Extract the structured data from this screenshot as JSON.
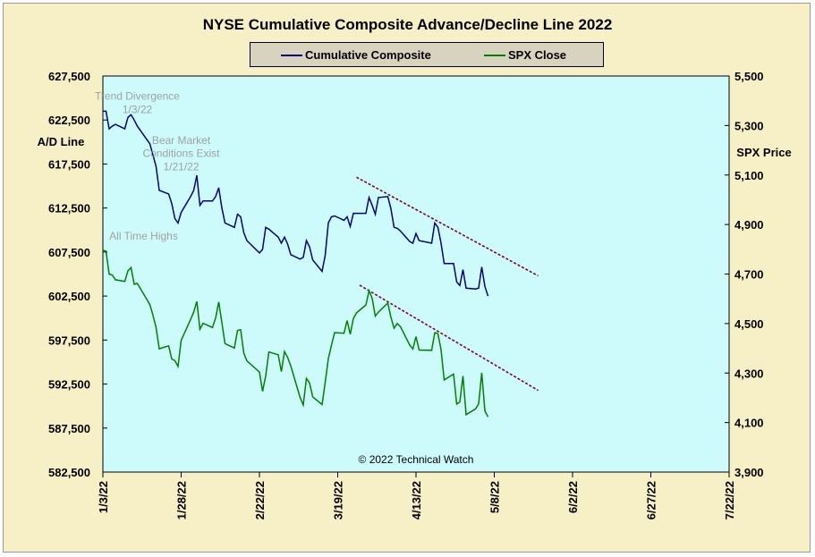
{
  "chart_data": {
    "type": "line",
    "title": "NYSE Cumulative Composite Advance/Decline Line 2022",
    "ylabel_left": "A/D Line",
    "ylabel_right": "SPX Price",
    "y_left_range": [
      582500,
      627500
    ],
    "y_right_range": [
      3900,
      5500
    ],
    "y_left_ticks": [
      "627,500",
      "622,500",
      "617,500",
      "612,500",
      "607,500",
      "602,500",
      "597,500",
      "592,500",
      "587,500",
      "582,500"
    ],
    "y_right_ticks": [
      "5,500",
      "5,300",
      "5,100",
      "4,900",
      "4,700",
      "4,500",
      "4,300",
      "4,100",
      "3,900"
    ],
    "x_range": [
      "2022-01-03",
      "2022-07-22"
    ],
    "x_ticks": [
      "1/3/22",
      "1/28/22",
      "2/22/22",
      "3/19/22",
      "4/13/22",
      "5/8/22",
      "6/2/22",
      "6/27/22",
      "7/22/22"
    ],
    "grid": false,
    "legend_position": "top-center",
    "plot_background": "#cdfbfb",
    "series": [
      {
        "name": "Cumulative Composite",
        "axis": "left",
        "color": "#000080",
        "points": [
          [
            "2022-01-03",
            623500
          ],
          [
            "2022-01-04",
            623500
          ],
          [
            "2022-01-05",
            621500
          ],
          [
            "2022-01-06",
            621800
          ],
          [
            "2022-01-07",
            622000
          ],
          [
            "2022-01-10",
            621500
          ],
          [
            "2022-01-11",
            622800
          ],
          [
            "2022-01-12",
            623100
          ],
          [
            "2022-01-13",
            622500
          ],
          [
            "2022-01-14",
            621800
          ],
          [
            "2022-01-18",
            619800
          ],
          [
            "2022-01-19",
            618500
          ],
          [
            "2022-01-20",
            617200
          ],
          [
            "2022-01-21",
            614500
          ],
          [
            "2022-01-24",
            614100
          ],
          [
            "2022-01-25",
            613000
          ],
          [
            "2022-01-26",
            611300
          ],
          [
            "2022-01-27",
            610800
          ],
          [
            "2022-01-28",
            612000
          ],
          [
            "2022-01-31",
            613800
          ],
          [
            "2022-02-01",
            614500
          ],
          [
            "2022-02-02",
            616200
          ],
          [
            "2022-02-03",
            612800
          ],
          [
            "2022-02-04",
            613300
          ],
          [
            "2022-02-07",
            613300
          ],
          [
            "2022-02-08",
            613800
          ],
          [
            "2022-02-09",
            614800
          ],
          [
            "2022-02-10",
            612500
          ],
          [
            "2022-02-11",
            610800
          ],
          [
            "2022-02-14",
            610300
          ],
          [
            "2022-02-15",
            611800
          ],
          [
            "2022-02-16",
            611500
          ],
          [
            "2022-02-17",
            609700
          ],
          [
            "2022-02-18",
            608800
          ],
          [
            "2022-02-22",
            607400
          ],
          [
            "2022-02-23",
            607800
          ],
          [
            "2022-02-24",
            610300
          ],
          [
            "2022-02-25",
            610100
          ],
          [
            "2022-02-28",
            609200
          ],
          [
            "2022-03-01",
            608500
          ],
          [
            "2022-03-02",
            609200
          ],
          [
            "2022-03-03",
            608400
          ],
          [
            "2022-03-04",
            607200
          ],
          [
            "2022-03-07",
            606700
          ],
          [
            "2022-03-08",
            606900
          ],
          [
            "2022-03-09",
            608800
          ],
          [
            "2022-03-10",
            608100
          ],
          [
            "2022-03-11",
            606600
          ],
          [
            "2022-03-14",
            605300
          ],
          [
            "2022-03-15",
            607100
          ],
          [
            "2022-03-16",
            610800
          ],
          [
            "2022-03-17",
            611500
          ],
          [
            "2022-03-18",
            611600
          ],
          [
            "2022-03-21",
            611100
          ],
          [
            "2022-03-22",
            611500
          ],
          [
            "2022-03-23",
            610400
          ],
          [
            "2022-03-24",
            611900
          ],
          [
            "2022-03-25",
            611900
          ],
          [
            "2022-03-28",
            611900
          ],
          [
            "2022-03-29",
            613700
          ],
          [
            "2022-03-30",
            612800
          ],
          [
            "2022-03-31",
            611800
          ],
          [
            "2022-04-01",
            613700
          ],
          [
            "2022-04-04",
            613800
          ],
          [
            "2022-04-05",
            612400
          ],
          [
            "2022-04-06",
            610300
          ],
          [
            "2022-04-07",
            610200
          ],
          [
            "2022-04-08",
            609900
          ],
          [
            "2022-04-11",
            608700
          ],
          [
            "2022-04-12",
            608500
          ],
          [
            "2022-04-13",
            609600
          ],
          [
            "2022-04-14",
            608800
          ],
          [
            "2022-04-18",
            608500
          ],
          [
            "2022-04-19",
            610800
          ],
          [
            "2022-04-20",
            610300
          ],
          [
            "2022-04-21",
            608500
          ],
          [
            "2022-04-22",
            606200
          ],
          [
            "2022-04-25",
            606200
          ],
          [
            "2022-04-26",
            604100
          ],
          [
            "2022-04-27",
            603700
          ],
          [
            "2022-04-28",
            605500
          ],
          [
            "2022-04-29",
            603400
          ],
          [
            "2022-05-02",
            603300
          ],
          [
            "2022-05-03",
            603400
          ],
          [
            "2022-05-04",
            605800
          ],
          [
            "2022-05-05",
            603600
          ],
          [
            "2022-05-06",
            602500
          ]
        ]
      },
      {
        "name": "SPX Close",
        "axis": "right",
        "color": "#008000",
        "points": [
          [
            "2022-01-03",
            4796
          ],
          [
            "2022-01-04",
            4793
          ],
          [
            "2022-01-05",
            4700
          ],
          [
            "2022-01-06",
            4696
          ],
          [
            "2022-01-07",
            4677
          ],
          [
            "2022-01-10",
            4670
          ],
          [
            "2022-01-11",
            4713
          ],
          [
            "2022-01-12",
            4726
          ],
          [
            "2022-01-13",
            4659
          ],
          [
            "2022-01-14",
            4662
          ],
          [
            "2022-01-18",
            4577
          ],
          [
            "2022-01-19",
            4533
          ],
          [
            "2022-01-20",
            4483
          ],
          [
            "2022-01-21",
            4398
          ],
          [
            "2022-01-24",
            4410
          ],
          [
            "2022-01-25",
            4357
          ],
          [
            "2022-01-26",
            4350
          ],
          [
            "2022-01-27",
            4327
          ],
          [
            "2022-01-28",
            4432
          ],
          [
            "2022-01-31",
            4516
          ],
          [
            "2022-02-01",
            4546
          ],
          [
            "2022-02-02",
            4589
          ],
          [
            "2022-02-03",
            4477
          ],
          [
            "2022-02-04",
            4501
          ],
          [
            "2022-02-07",
            4484
          ],
          [
            "2022-02-08",
            4522
          ],
          [
            "2022-02-09",
            4587
          ],
          [
            "2022-02-10",
            4504
          ],
          [
            "2022-02-11",
            4419
          ],
          [
            "2022-02-14",
            4401
          ],
          [
            "2022-02-15",
            4472
          ],
          [
            "2022-02-16",
            4475
          ],
          [
            "2022-02-17",
            4381
          ],
          [
            "2022-02-18",
            4349
          ],
          [
            "2022-02-22",
            4304
          ],
          [
            "2022-02-23",
            4226
          ],
          [
            "2022-02-24",
            4288
          ],
          [
            "2022-02-25",
            4385
          ],
          [
            "2022-02-28",
            4374
          ],
          [
            "2022-03-01",
            4306
          ],
          [
            "2022-03-02",
            4387
          ],
          [
            "2022-03-03",
            4363
          ],
          [
            "2022-03-04",
            4329
          ],
          [
            "2022-03-07",
            4201
          ],
          [
            "2022-03-08",
            4171
          ],
          [
            "2022-03-09",
            4278
          ],
          [
            "2022-03-10",
            4260
          ],
          [
            "2022-03-11",
            4204
          ],
          [
            "2022-03-14",
            4173
          ],
          [
            "2022-03-15",
            4262
          ],
          [
            "2022-03-16",
            4358
          ],
          [
            "2022-03-17",
            4412
          ],
          [
            "2022-03-18",
            4463
          ],
          [
            "2022-03-21",
            4461
          ],
          [
            "2022-03-22",
            4512
          ],
          [
            "2022-03-23",
            4457
          ],
          [
            "2022-03-24",
            4520
          ],
          [
            "2022-03-25",
            4543
          ],
          [
            "2022-03-28",
            4575
          ],
          [
            "2022-03-29",
            4632
          ],
          [
            "2022-03-30",
            4602
          ],
          [
            "2022-03-31",
            4530
          ],
          [
            "2022-04-01",
            4546
          ],
          [
            "2022-04-04",
            4583
          ],
          [
            "2022-04-05",
            4525
          ],
          [
            "2022-04-06",
            4481
          ],
          [
            "2022-04-07",
            4500
          ],
          [
            "2022-04-08",
            4488
          ],
          [
            "2022-04-11",
            4413
          ],
          [
            "2022-04-12",
            4397
          ],
          [
            "2022-04-13",
            4447
          ],
          [
            "2022-04-14",
            4393
          ],
          [
            "2022-04-18",
            4392
          ],
          [
            "2022-04-19",
            4463
          ],
          [
            "2022-04-20",
            4459
          ],
          [
            "2022-04-21",
            4394
          ],
          [
            "2022-04-22",
            4272
          ],
          [
            "2022-04-25",
            4296
          ],
          [
            "2022-04-26",
            4175
          ],
          [
            "2022-04-27",
            4183
          ],
          [
            "2022-04-28",
            4288
          ],
          [
            "2022-04-29",
            4132
          ],
          [
            "2022-05-02",
            4155
          ],
          [
            "2022-05-03",
            4175
          ],
          [
            "2022-05-04",
            4301
          ],
          [
            "2022-05-05",
            4147
          ],
          [
            "2022-05-06",
            4123
          ]
        ]
      }
    ],
    "trendlines": [
      {
        "axis": "left",
        "color": "#800020",
        "style": "dashed",
        "from": [
          "2022-03-25",
          616000
        ],
        "to": [
          "2022-05-22",
          604800
        ]
      },
      {
        "axis": "right",
        "color": "#800040",
        "style": "dashed",
        "from": [
          "2022-03-26",
          4655
        ],
        "to": [
          "2022-05-22",
          4230
        ]
      }
    ],
    "annotations": [
      {
        "text": "Trend Divergence",
        "x": "2022-01-14",
        "axis": "left",
        "y": 624800,
        "color": "#a0a0a0"
      },
      {
        "text": "1/3/22",
        "x": "2022-01-14",
        "axis": "left",
        "y": 623300,
        "color": "#a0a0a0"
      },
      {
        "text": "Bear Market",
        "x": "2022-01-28",
        "axis": "left",
        "y": 619800,
        "color": "#a0a0a0"
      },
      {
        "text": "Conditions  Exist",
        "x": "2022-01-28",
        "axis": "left",
        "y": 618300,
        "color": "#a0a0a0"
      },
      {
        "text": "1/21/22",
        "x": "2022-01-28",
        "axis": "left",
        "y": 616800,
        "color": "#a0a0a0"
      },
      {
        "text": "All Time Highs",
        "x": "2022-01-16",
        "axis": "left",
        "y": 608900,
        "color": "#a0a0a0"
      },
      {
        "text": "© 2022 Technical  Watch",
        "x": "2022-04-13",
        "axis": "left",
        "y": 583500,
        "color": "#000000"
      }
    ]
  }
}
